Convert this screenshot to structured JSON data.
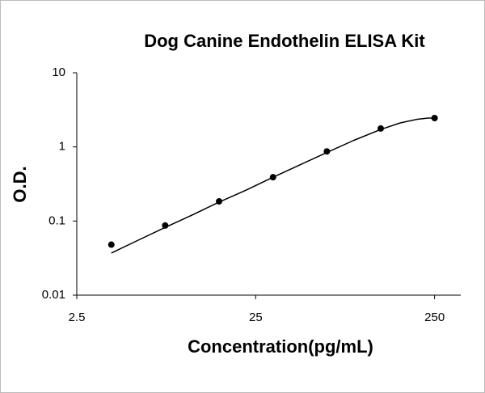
{
  "chart_data": {
    "type": "scatter",
    "title": "Dog Canine Endothelin  ELISA Kit",
    "xlabel": "Concentration(pg/mL)",
    "ylabel": "O.D.",
    "x": [
      3.9,
      7.8,
      15.6,
      31.25,
      62.5,
      125,
      250
    ],
    "values": [
      0.048,
      0.087,
      0.184,
      0.39,
      0.87,
      1.77,
      2.45
    ],
    "color": "#000000",
    "fit": {
      "x": [
        3.9,
        5.5,
        7.8,
        11,
        15.6,
        22,
        31.25,
        44,
        62.5,
        88,
        125,
        160,
        200,
        230,
        250
      ],
      "values": [
        0.037,
        0.055,
        0.082,
        0.12,
        0.18,
        0.26,
        0.39,
        0.57,
        0.84,
        1.22,
        1.72,
        2.1,
        2.36,
        2.45,
        2.45
      ],
      "color": "#000000"
    },
    "xscale": "log",
    "yscale": "log",
    "xlim": [
      2.5,
      350
    ],
    "xticks": [
      2.5,
      25,
      250
    ],
    "ylim": [
      0.01,
      10
    ],
    "yticks": [
      0.01,
      0.1,
      1,
      10
    ],
    "grid": false
  }
}
